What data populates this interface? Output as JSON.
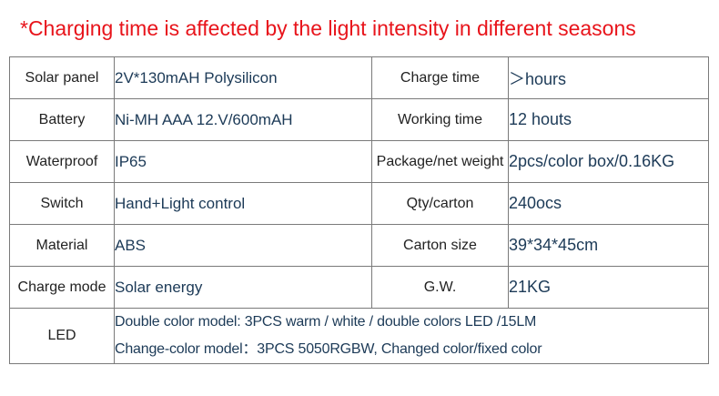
{
  "headline": "*Charging time is affected by the light intensity in different seasons",
  "rows": [
    {
      "label": "Solar panel",
      "value": "2V*130mAH Polysilicon",
      "label2": "Charge time",
      "value2": "＞hours"
    },
    {
      "label": "Battery",
      "value": "Ni-MH AAA  12.V/600mAH",
      "label2": "Working time",
      "value2": "12 houts"
    },
    {
      "label": "Waterproof",
      "value": "IP65",
      "label2": "Package/net weight",
      "value2": "2pcs/color box/0.16KG"
    },
    {
      "label": "Switch",
      "value": "Hand+Light control",
      "label2": "Qty/carton",
      "value2": "240ocs"
    },
    {
      "label": "Material",
      "value": "ABS",
      "label2": "Carton size",
      "value2": "39*34*45cm"
    },
    {
      "label": "Charge mode",
      "value": "Solar energy",
      "label2": "G.W.",
      "value2": "21KG"
    }
  ],
  "led": {
    "label": "LED",
    "line1": "Double color model: 3PCS warm / white /  double colors LED /15LM",
    "line2": "Change-color model：3PCS 5050RGBW, Changed color/fixed color"
  },
  "colors": {
    "headline": "#e8141b",
    "value_text": "#1c3a57",
    "border": "#7a7a7a"
  }
}
